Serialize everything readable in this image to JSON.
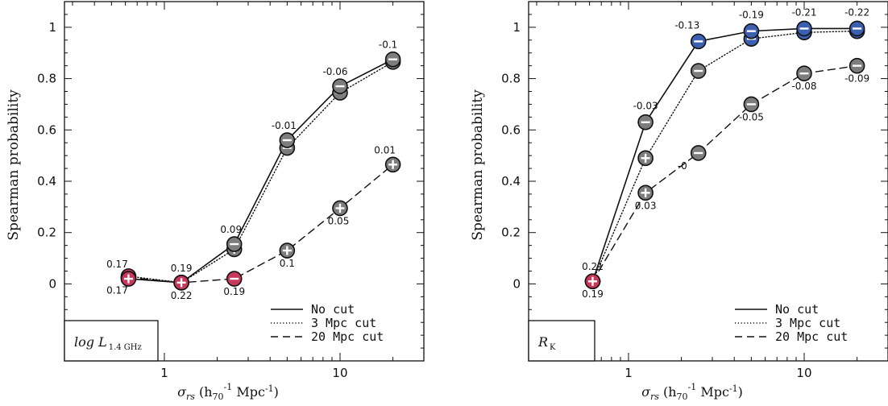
{
  "chart_data": [
    {
      "type": "line",
      "title": "",
      "panel_label": "log L",
      "panel_label_sub": "1.4 GHz",
      "xlabel": "σ",
      "xlabel_sub": "rs",
      "xlabel_unit_pre": "(h",
      "xlabel_unit_sub": "70",
      "xlabel_unit_sup": "-1",
      "xlabel_unit_post": " Mpc",
      "xlabel_unit_sup2": "-1",
      "xlabel_unit_end": ")",
      "ylabel": "Spearman probability",
      "xscale": "log",
      "xlim": [
        0.27,
        30
      ],
      "ylim": [
        -0.3,
        1.1
      ],
      "xticks": [
        1,
        10
      ],
      "xtick_labels": [
        "1",
        "10"
      ],
      "yticks": [
        0,
        0.2,
        0.4,
        0.6,
        0.8,
        1
      ],
      "ytick_labels": [
        "0",
        "0.2",
        "0.4",
        "0.6",
        "0.8",
        "1"
      ],
      "legend_position": "bottom-right",
      "series": [
        {
          "name": "No cut",
          "dash": "solid",
          "x": [
            0.625,
            1.25,
            2.5,
            5,
            10,
            20
          ],
          "y": [
            0.02,
            0.005,
            0.155,
            0.56,
            0.77,
            0.875
          ],
          "markers": [
            "red-cross",
            "red-cross",
            "gray",
            "gray",
            "gray",
            "gray"
          ],
          "labels": [
            "0.17",
            "0.19",
            "0.09",
            "-0.01",
            "-0.06",
            "-0.1"
          ]
        },
        {
          "name": "3 Mpc cut",
          "dash": "dotted",
          "x": [
            0.625,
            1.25,
            2.5,
            5,
            10,
            20
          ],
          "y": [
            0.03,
            0.005,
            0.135,
            0.53,
            0.745,
            0.865
          ],
          "markers": [
            "red-cross",
            "red-cross",
            "gray-cross",
            "gray",
            "gray",
            "gray"
          ],
          "labels": [
            "",
            "",
            "",
            "",
            "",
            ""
          ]
        },
        {
          "name": "20 Mpc cut",
          "dash": "dashed",
          "x": [
            0.625,
            1.25,
            2.5,
            5,
            10,
            20
          ],
          "y": [
            0.025,
            0.005,
            0.02,
            0.13,
            0.295,
            0.465
          ],
          "markers": [
            "red-cross",
            "red-cross",
            "red",
            "gray-cross",
            "gray-cross",
            "gray-cross"
          ],
          "labels": [
            "0.17",
            "0.22",
            "0.19",
            "0.1",
            "0.05",
            "0.01"
          ]
        }
      ]
    },
    {
      "type": "line",
      "title": "",
      "panel_label": "R",
      "panel_label_sub": "K",
      "xlabel": "σ",
      "xlabel_sub": "rs",
      "xlabel_unit_pre": "(h",
      "xlabel_unit_sub": "70",
      "xlabel_unit_sup": "-1",
      "xlabel_unit_post": " Mpc",
      "xlabel_unit_sup2": "-1",
      "xlabel_unit_end": ")",
      "ylabel": "Spearman probability",
      "xscale": "log",
      "xlim": [
        0.27,
        30
      ],
      "ylim": [
        -0.3,
        1.1
      ],
      "xticks": [
        1,
        10
      ],
      "xtick_labels": [
        "1",
        "10"
      ],
      "yticks": [
        0,
        0.2,
        0.4,
        0.6,
        0.8,
        1
      ],
      "ytick_labels": [
        "0",
        "0.2",
        "0.4",
        "0.6",
        "0.8",
        "1"
      ],
      "legend_position": "bottom-right",
      "series": [
        {
          "name": "No cut",
          "dash": "solid",
          "x": [
            0.625,
            1.25,
            2.5,
            5,
            10,
            20
          ],
          "y": [
            0.01,
            0.63,
            0.945,
            0.985,
            0.995,
            0.995
          ],
          "markers": [
            "red-cross",
            "gray",
            "blue",
            "blue",
            "blue",
            "blue"
          ],
          "labels": [
            "0.21",
            "-0.03",
            "-0.13",
            "-0.19",
            "-0.21",
            "-0.22"
          ]
        },
        {
          "name": "3 Mpc cut",
          "dash": "dotted",
          "x": [
            0.625,
            1.25,
            2.5,
            5,
            10,
            20
          ],
          "y": [
            0.01,
            0.49,
            0.83,
            0.955,
            0.98,
            0.985
          ],
          "markers": [
            "red-cross",
            "gray-cross",
            "gray",
            "blue",
            "blue",
            "blue"
          ],
          "labels": [
            "",
            "",
            "",
            "",
            "",
            ""
          ]
        },
        {
          "name": "20 Mpc cut",
          "dash": "dashed",
          "x": [
            0.625,
            1.25,
            2.5,
            5,
            10,
            20
          ],
          "y": [
            0.01,
            0.355,
            0.51,
            0.7,
            0.82,
            0.85
          ],
          "markers": [
            "red-cross",
            "gray-cross",
            "gray",
            "gray",
            "gray",
            "gray"
          ],
          "labels": [
            "0.19",
            "0.03",
            "-0",
            "-0.05",
            "-0.08",
            "-0.09"
          ]
        }
      ]
    }
  ],
  "colors": {
    "marker_gray": "#7d7d7d",
    "marker_red": "#c8385a",
    "marker_blue": "#3c5fb0",
    "axis": "#111111"
  }
}
